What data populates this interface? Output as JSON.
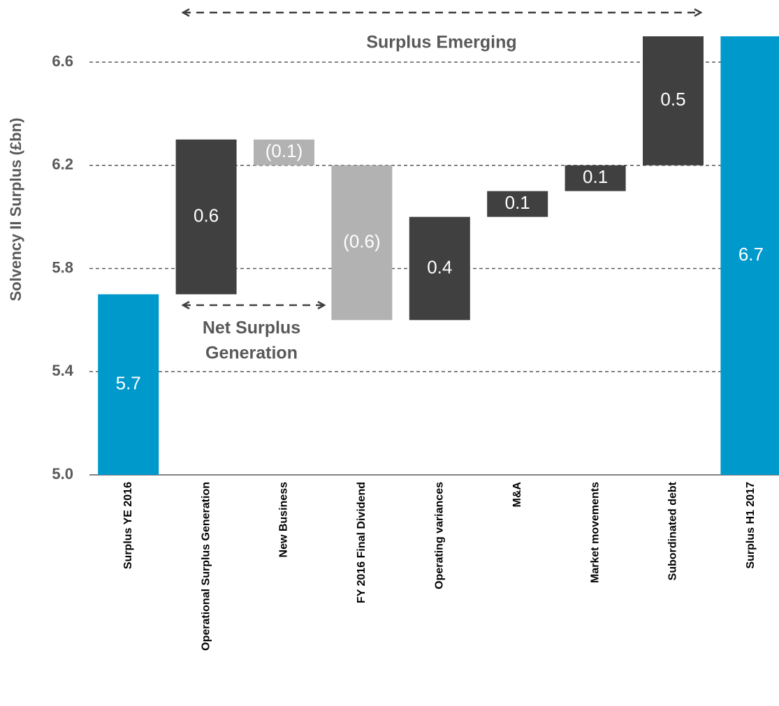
{
  "chart_data": {
    "type": "waterfall",
    "y_label": "Solvency II Surplus (£bn)",
    "categories": [
      "Surplus YE 2016",
      "Operational Surplus Generation",
      "New Business",
      "FY 2016 Final Dividend",
      "Operating variances",
      "M&A",
      "Market movements",
      "Subordinated debt",
      "Surplus H1 2017"
    ],
    "values": [
      5.7,
      0.6,
      -0.1,
      -0.6,
      0.4,
      0.1,
      0.1,
      0.5,
      6.7
    ],
    "value_labels": [
      "5.7",
      "0.6",
      "(0.1)",
      "(0.6)",
      "0.4",
      "0.1",
      "0.1",
      "0.5",
      "6.7"
    ],
    "is_total": [
      true,
      false,
      false,
      false,
      false,
      false,
      false,
      false,
      true
    ],
    "colors": {
      "total": "#0099cc",
      "increase": "#404040",
      "decrease": "#b2b2b2"
    },
    "ylim": [
      5.0,
      6.7
    ],
    "yticks": [
      {
        "value": 5.0,
        "label": "5.0"
      },
      5.4,
      5.8,
      6.2,
      6.6
    ],
    "grid": true,
    "annotations": [
      {
        "lines": [
          "Surplus Emerging"
        ]
      },
      {
        "lines": [
          "Net Surplus",
          "Generation"
        ]
      }
    ]
  }
}
